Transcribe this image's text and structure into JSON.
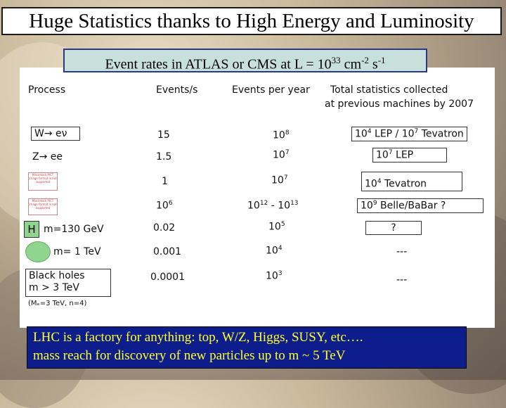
{
  "title": "Huge Statistics thanks to High Energy and Luminosity",
  "subtitle": {
    "text": "Event rates in ATLAS or CMS  at L = 10",
    "exp1": "33",
    "mid": " cm",
    "exp2": "-2",
    "mid2": " s",
    "exp3": "-1"
  },
  "headers": {
    "process": "Process",
    "events_s": "Events/s",
    "events_year": "Events per year",
    "total_line1": "Total  statistics collected",
    "total_line2": "at previous machines by 2007"
  },
  "rows": [
    {
      "process": "W→ eν",
      "rate": "15",
      "year_base": "10",
      "year_exp": "8",
      "prev_base1": "10",
      "prev_exp1": "4",
      "prev_mid": " LEP / 10",
      "prev_exp2": "7",
      "prev_tail": " Tevatron"
    },
    {
      "process": "Z→ ee",
      "rate": "1.5",
      "year_base": "10",
      "year_exp": "7",
      "prev_base1": "10",
      "prev_exp1": "7",
      "prev_tail": "  LEP"
    },
    {
      "rate": "1",
      "year_base": "10",
      "year_exp": "7",
      "prev_base1": "10",
      "prev_exp1": "4",
      "prev_tail": "  Tevatron"
    },
    {
      "rate_base": "10",
      "rate_exp": "6",
      "year_a": "10",
      "year_a_exp": "12",
      "year_sep": " - 10",
      "year_b_exp": "13",
      "prev_base1": "10",
      "prev_exp1": "9",
      "prev_tail": " Belle/BaBar   ?"
    },
    {
      "process_badge": "H",
      "process": "m=130 GeV",
      "rate": "0.02",
      "year_base": "10",
      "year_exp": "5",
      "prev": "?"
    },
    {
      "process": "m= 1 TeV",
      "rate": "0.001",
      "year_base": "10",
      "year_exp": "4",
      "prev": "---"
    },
    {
      "process_line1": "Black holes",
      "process_line2": "m > 3 TeV",
      "process_note": "(Mₑ=3 TeV, n=4)",
      "rate": "0.0001",
      "year_base": "10",
      "year_exp": "3",
      "prev": "---"
    }
  ],
  "placeholders": [
    "Macintosh PICT image format is not supported",
    "Macintosh PICT image format is not supported",
    "Macintosh PICT image format is not supported"
  ],
  "footer": {
    "line1": "LHC is a factory for anything:  top, W/Z, Higgs, SUSY, etc….",
    "line2": "mass reach for discovery of new particles up to  m ~ 5 TeV"
  },
  "colors": {
    "footer_bg": "#0d1e8c",
    "footer_text": "#ffff2a",
    "subtitle_bg": "#c8e0dc",
    "badge_green": "#8fd48f"
  }
}
